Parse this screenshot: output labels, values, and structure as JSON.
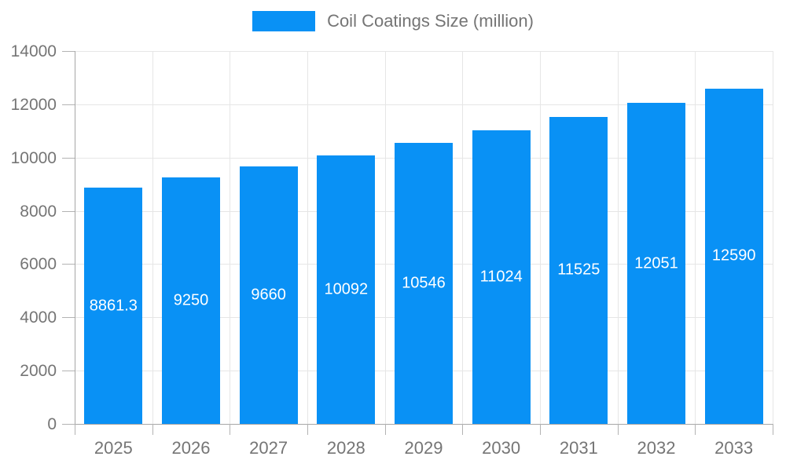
{
  "legend": {
    "label": "Coil Coatings Size (million)"
  },
  "chart_data": {
    "type": "bar",
    "title": "Coil Coatings Size (million)",
    "categories": [
      "2025",
      "2026",
      "2027",
      "2028",
      "2029",
      "2030",
      "2031",
      "2032",
      "2033"
    ],
    "series": [
      {
        "name": "Coil Coatings Size (million)",
        "values": [
          8861.3,
          9250,
          9660,
          10092,
          10546,
          11024,
          11525,
          12051,
          12590
        ],
        "labels": [
          "8861.3",
          "9250",
          "9660",
          "10092",
          "10546",
          "11024",
          "11525",
          "12051",
          "12590"
        ]
      }
    ],
    "xlabel": "",
    "ylabel": "",
    "ylim": [
      0,
      14000
    ],
    "yticks": [
      0,
      2000,
      4000,
      6000,
      8000,
      10000,
      12000,
      14000
    ],
    "grid": true,
    "legend_position": "top",
    "value_labels_position": "inside-center",
    "colors": {
      "bar": "#0991f5",
      "grid": "#e6e6e6",
      "axis": "#a6a6a6",
      "tick": "#b3b3b3",
      "text": "#757575",
      "bar_label": "#ffffff",
      "background": "#ffffff"
    }
  }
}
